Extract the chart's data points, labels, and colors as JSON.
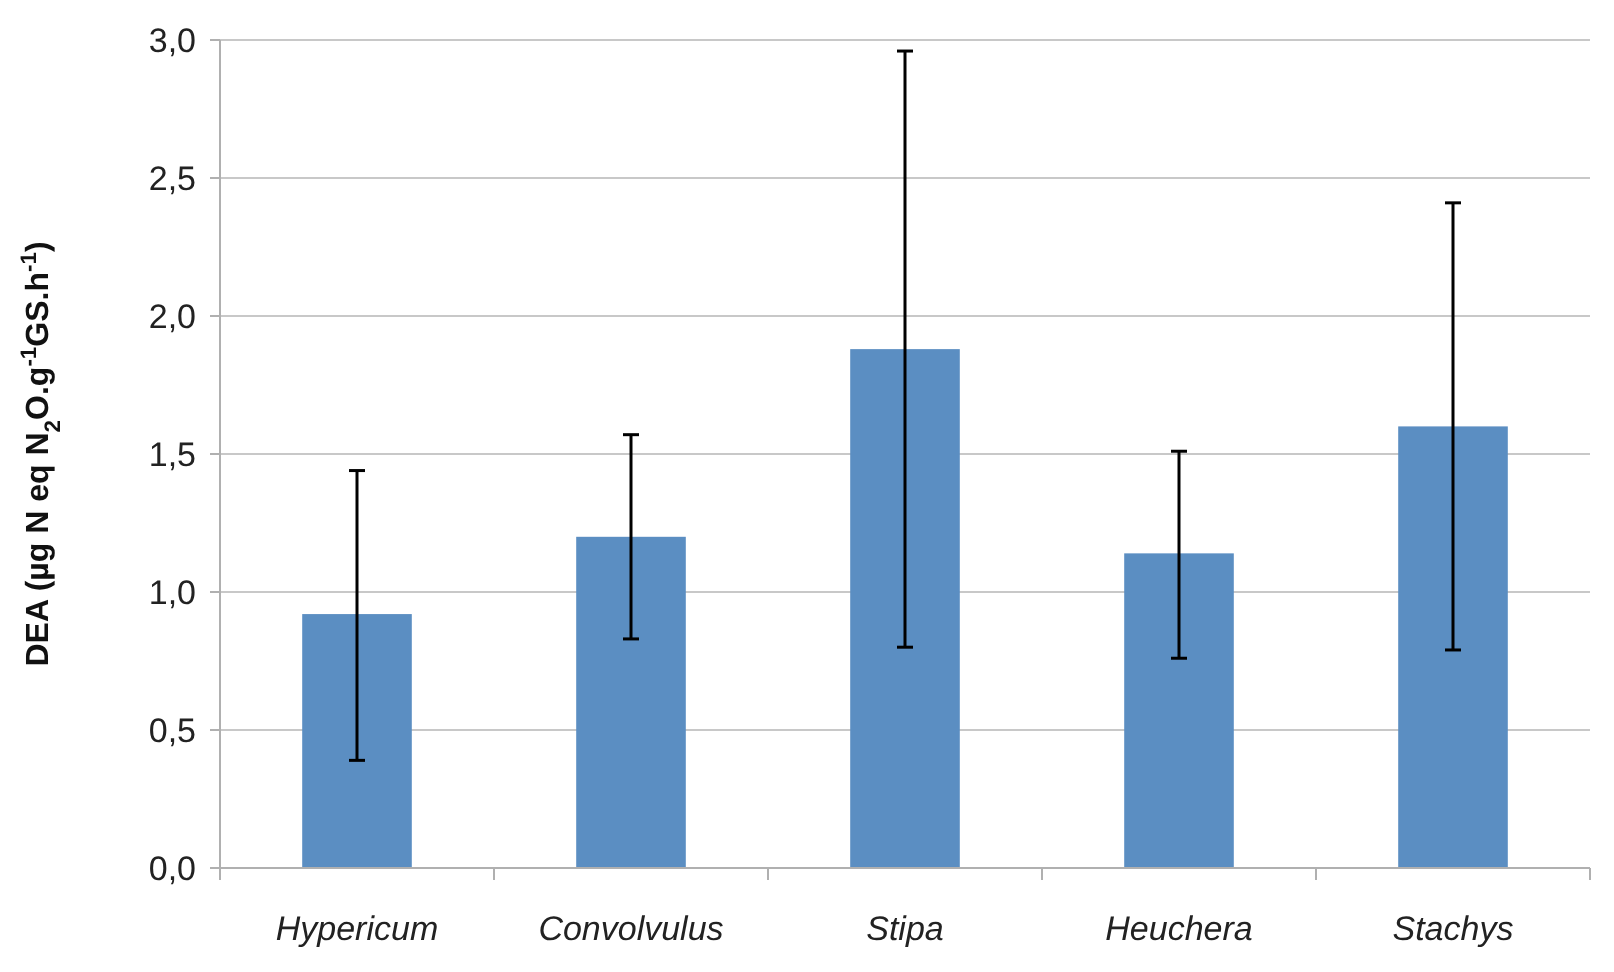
{
  "chart_data": {
    "type": "bar",
    "ylabel": "DEA (µg N eq N$_{2}$O.g$^{-1}$GS.h$^{-1}$)",
    "categories": [
      "Hypericum",
      "Convolvulus",
      "Stipa",
      "Heuchera",
      "Stachys"
    ],
    "values": [
      0.92,
      1.2,
      1.88,
      1.14,
      1.6
    ],
    "errors": [
      [
        0.39,
        1.44
      ],
      [
        0.83,
        1.57
      ],
      [
        0.8,
        2.96
      ],
      [
        0.76,
        1.51
      ],
      [
        0.79,
        2.41
      ]
    ],
    "color": "#5b8ec2",
    "ylim": [
      0,
      3
    ],
    "yticks": [
      {
        "value": 0,
        "label": "0,0"
      },
      {
        "value": 0.5,
        "label": "0,5"
      },
      {
        "value": 1,
        "label": "1,0"
      },
      {
        "value": 1.5,
        "label": "1,5"
      },
      {
        "value": 2,
        "label": "2,0"
      },
      {
        "value": 2.5,
        "label": "2,5"
      },
      {
        "value": 3,
        "label": "3,0"
      }
    ],
    "grid": "y"
  }
}
